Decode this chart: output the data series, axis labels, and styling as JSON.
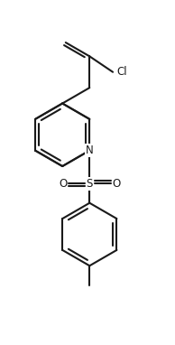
{
  "bg_color": "#ffffff",
  "line_color": "#1a1a1a",
  "line_width": 1.5,
  "figsize": [
    1.94,
    3.82
  ],
  "dpi": 100,
  "xlim": [
    -1.1,
    1.1
  ],
  "ylim": [
    -2.3,
    1.9
  ]
}
